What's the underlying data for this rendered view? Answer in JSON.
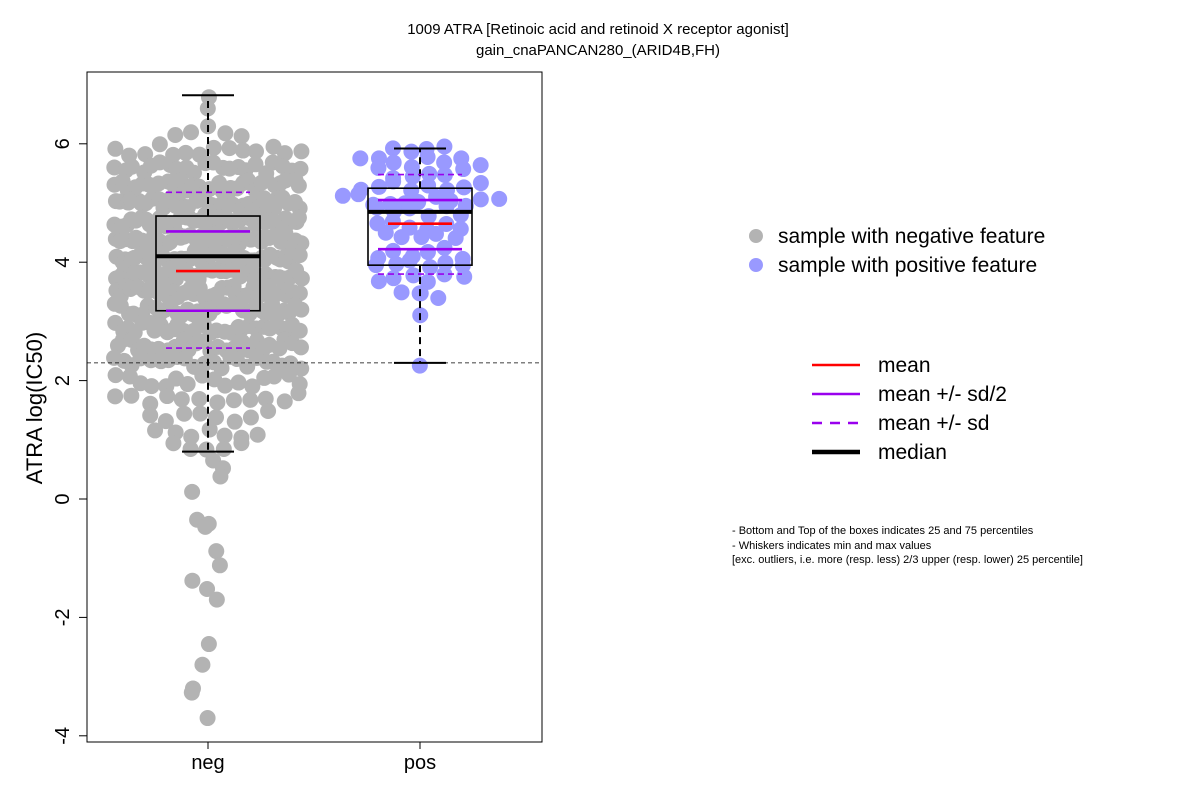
{
  "chart_data": {
    "type": "scatter",
    "subtype": "beeswarm-boxplot",
    "title": "1009 ATRA [Retinoic acid and retinoid X receptor agonist]",
    "subtitle": "gain_cnaPANCAN280_(ARID4B,FH)",
    "xlabel": "",
    "ylabel": "ATRA log(IC50)",
    "ylim": [
      -4,
      7
    ],
    "yticks": [
      -4,
      -2,
      0,
      2,
      4,
      6
    ],
    "categories": [
      "neg",
      "pos"
    ],
    "reference_line_y": 2.3,
    "groups": [
      {
        "name": "neg",
        "color": "#b3b3b3",
        "box": {
          "q1": 3.18,
          "median": 4.1,
          "q3": 4.78,
          "whisker_low": 0.8,
          "whisker_high": 6.82
        },
        "mean": 3.85,
        "mean_plus_half_sd": 4.52,
        "mean_minus_half_sd": 3.18,
        "mean_plus_sd": 5.18,
        "mean_minus_sd": 2.55,
        "points_dense": [
          {
            "y": 6.8,
            "n": 1
          },
          {
            "y": 6.55,
            "n": 1
          },
          {
            "y": 6.2,
            "n": 5
          },
          {
            "y": 5.9,
            "n": 14
          },
          {
            "y": 5.6,
            "n": 22
          },
          {
            "y": 5.3,
            "n": 30
          },
          {
            "y": 5.0,
            "n": 36
          },
          {
            "y": 4.7,
            "n": 38
          },
          {
            "y": 4.4,
            "n": 38
          },
          {
            "y": 4.1,
            "n": 38
          },
          {
            "y": 3.8,
            "n": 38
          },
          {
            "y": 3.5,
            "n": 36
          },
          {
            "y": 3.2,
            "n": 34
          },
          {
            "y": 2.9,
            "n": 30
          },
          {
            "y": 2.6,
            "n": 26
          },
          {
            "y": 2.3,
            "n": 22
          },
          {
            "y": 2.0,
            "n": 16
          },
          {
            "y": 1.7,
            "n": 12
          },
          {
            "y": 1.4,
            "n": 8
          },
          {
            "y": 1.1,
            "n": 7
          },
          {
            "y": 0.85,
            "n": 5
          }
        ],
        "points_tail": [
          0.65,
          0.52,
          0.38,
          0.12,
          -0.35,
          -0.42,
          -0.47,
          -0.88,
          -1.12,
          -1.38,
          -1.52,
          -1.7,
          -2.45,
          -2.8,
          -3.2,
          -3.27,
          -3.7
        ]
      },
      {
        "name": "pos",
        "color": "#9999ff",
        "box": {
          "q1": 3.95,
          "median": 4.85,
          "q3": 5.25,
          "whisker_low": 2.3,
          "whisker_high": 5.92
        },
        "mean": 4.65,
        "mean_plus_half_sd": 5.05,
        "mean_minus_half_sd": 4.22,
        "mean_plus_sd": 5.48,
        "mean_minus_sd": 3.8,
        "points": [
          {
            "y": 5.9,
            "n": 4
          },
          {
            "y": 5.7,
            "n": 8
          },
          {
            "y": 5.5,
            "n": 6
          },
          {
            "y": 5.3,
            "n": 8
          },
          {
            "y": 5.05,
            "n": 11
          },
          {
            "y": 4.85,
            "n": 6
          },
          {
            "y": 4.6,
            "n": 6
          },
          {
            "y": 4.4,
            "n": 5
          },
          {
            "y": 4.15,
            "n": 6
          },
          {
            "y": 3.95,
            "n": 6
          },
          {
            "y": 3.75,
            "n": 6
          },
          {
            "y": 3.55,
            "n": 1
          },
          {
            "y": 3.4,
            "n": 3
          },
          {
            "y": 3.12,
            "n": 1
          },
          {
            "y": 2.3,
            "n": 1
          }
        ]
      }
    ],
    "legend_samples": [
      {
        "label": "sample with negative feature",
        "color": "#b3b3b3"
      },
      {
        "label": "sample with positive feature",
        "color": "#9999ff"
      }
    ],
    "legend_lines": [
      {
        "label": "mean",
        "color": "#ff0000",
        "style": "solid",
        "weight": "normal"
      },
      {
        "label": "mean +/- sd/2",
        "color": "#9900ee",
        "style": "solid",
        "weight": "normal"
      },
      {
        "label": "mean +/- sd",
        "color": "#9900ee",
        "style": "dashed",
        "weight": "normal"
      },
      {
        "label": "median",
        "color": "#000000",
        "style": "solid",
        "weight": "bold"
      }
    ],
    "notes": [
      "- Bottom and Top of the boxes indicates 25 and 75 percentiles",
      "- Whiskers indicates min and max values",
      "[exc. outliers, i.e. more (resp. less) 2/3 upper (resp. lower) 25 percentile]"
    ]
  }
}
